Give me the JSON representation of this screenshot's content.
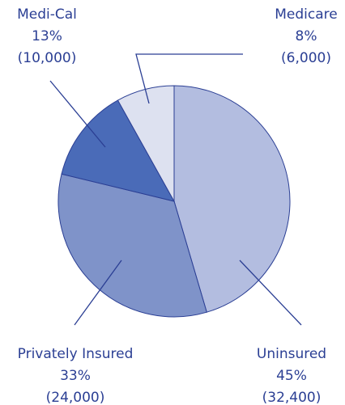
{
  "chart_data": {
    "type": "pie",
    "categories": [
      "Uninsured",
      "Privately Insured",
      "Medi-Cal",
      "Medicare"
    ],
    "values": [
      45,
      33,
      13,
      8
    ],
    "value_labels": [
      "45%",
      "33%",
      "13%",
      "8%"
    ],
    "counts": [
      32400,
      24000,
      10000,
      6000
    ],
    "count_labels": [
      "(32,400)",
      "(24,000)",
      "(10,000)",
      "(6,000)"
    ],
    "colors": [
      "#b3bde0",
      "#7f93c9",
      "#4a6bb8",
      "#dde1f0"
    ]
  }
}
